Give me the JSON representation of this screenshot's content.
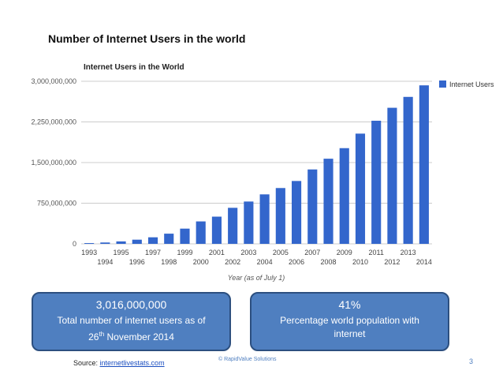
{
  "slide": {
    "title": "Number of Internet Users in the world",
    "page_number": "3",
    "copyright": "© RapidValue Solutions",
    "source_prefix": "Source: ",
    "source_link": "internetlivestats.com"
  },
  "box_left": {
    "value": "3,016,000,000",
    "line1": "Total number of internet users as of",
    "day": "26",
    "day_suffix": "th",
    "line2_rest": " November 2014"
  },
  "box_right": {
    "value": "41%",
    "line1": "Percentage world population with",
    "line2": "internet"
  },
  "colors": {
    "bar": "#3366cc",
    "box": "#4f7fc0",
    "grid": "#cccccc"
  },
  "chart_data": {
    "type": "bar",
    "title": "Internet Users in the World",
    "xlabel": "Year (as of July 1)",
    "ylabel": "",
    "legend": "Internet Users",
    "legend_position": "right",
    "ylim": [
      0,
      3000000000
    ],
    "yticks": [
      0,
      750000000,
      1500000000,
      2250000000,
      3000000000
    ],
    "ytick_labels": [
      "0",
      "750,000,000",
      "1,500,000,000",
      "2,250,000,000",
      "3,000,000,000"
    ],
    "categories": [
      "1993",
      "1994",
      "1995",
      "1996",
      "1997",
      "1998",
      "1999",
      "2000",
      "2001",
      "2002",
      "2003",
      "2004",
      "2005",
      "2006",
      "2007",
      "2008",
      "2009",
      "2010",
      "2011",
      "2012",
      "2013",
      "2014"
    ],
    "values": [
      14000000,
      25000000,
      45000000,
      77000000,
      121000000,
      188000000,
      281000000,
      414000000,
      502000000,
      665000000,
      781000000,
      913000000,
      1030000000,
      1160000000,
      1373000000,
      1571000000,
      1766000000,
      2034000000,
      2272000000,
      2511000000,
      2712000000,
      2925000000
    ]
  }
}
